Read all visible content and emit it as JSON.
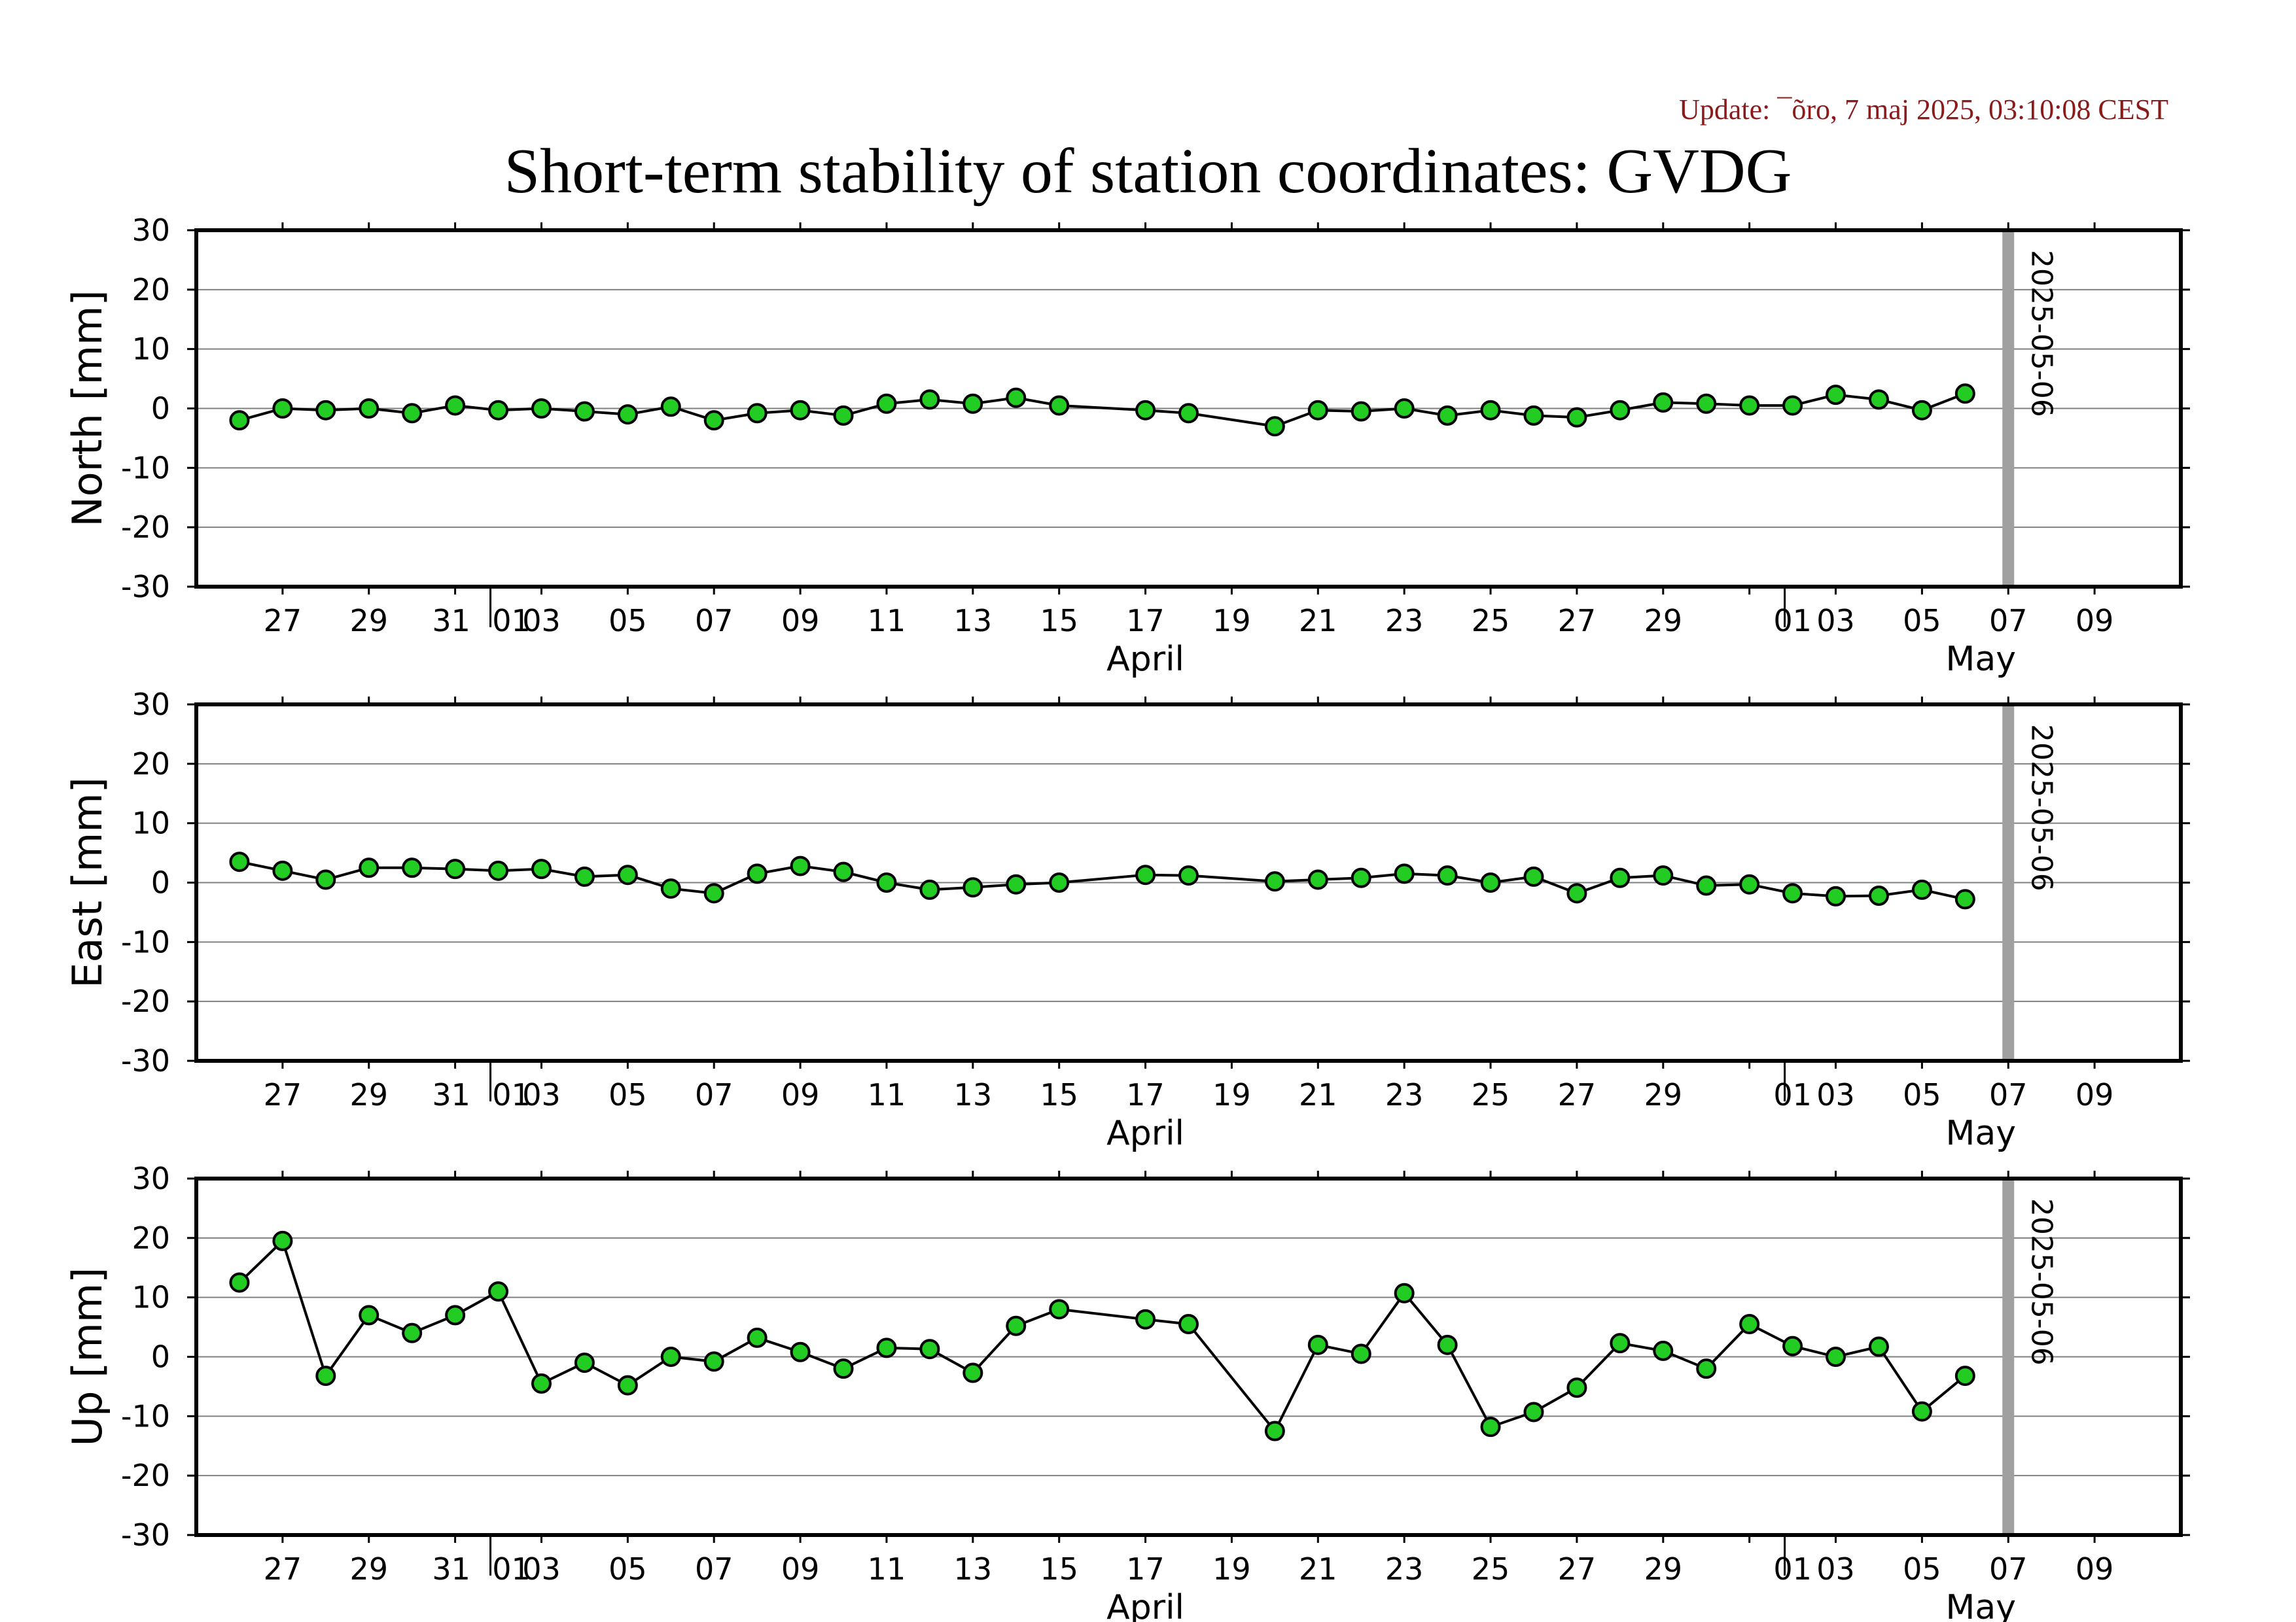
{
  "header": {
    "update": "Update: ¯õro, 7 maj 2025, 03:10:08 CEST",
    "title": "Short-term stability of station coordinates: GVDG"
  },
  "style": {
    "marker_fill": "#22cc22",
    "marker_stroke": "#000000",
    "line_color": "#000000",
    "grid_color": "#808080",
    "current_date_bar": "#a0a0a0",
    "update_color": "#8b1a1a"
  },
  "chart_data": [
    {
      "type": "line",
      "ylabel": "North [mm]",
      "ylim": [
        -30,
        30
      ],
      "yticks": [
        30,
        20,
        10,
        0,
        -10,
        -20,
        -30
      ],
      "xlim": [
        "2025-03-25",
        "2025-05-10"
      ],
      "xtick_labels": [
        "27",
        "29",
        "31",
        "01",
        "03",
        "05",
        "07",
        "09",
        "11",
        "13",
        "15",
        "17",
        "19",
        "21",
        "23",
        "25",
        "27",
        "29",
        "01",
        "03",
        "05",
        "07",
        "09"
      ],
      "month_labels": [
        "April",
        "May"
      ],
      "marker_date": "2025-05-06",
      "grid": true,
      "x": [
        "2025-03-26",
        "2025-03-27",
        "2025-03-28",
        "2025-03-29",
        "2025-03-30",
        "2025-03-31",
        "2025-04-01",
        "2025-04-02",
        "2025-04-03",
        "2025-04-04",
        "2025-04-05",
        "2025-04-06",
        "2025-04-07",
        "2025-04-08",
        "2025-04-09",
        "2025-04-10",
        "2025-04-11",
        "2025-04-12",
        "2025-04-13",
        "2025-04-14",
        "2025-04-16",
        "2025-04-17",
        "2025-04-19",
        "2025-04-20",
        "2025-04-21",
        "2025-04-22",
        "2025-04-23",
        "2025-04-24",
        "2025-04-25",
        "2025-04-26",
        "2025-04-27",
        "2025-04-28",
        "2025-04-29",
        "2025-04-30",
        "2025-05-01",
        "2025-05-02",
        "2025-05-03",
        "2025-05-04",
        "2025-05-05"
      ],
      "values": [
        -2,
        0,
        -0.3,
        0,
        -0.8,
        0.5,
        -0.3,
        0,
        -0.5,
        -1,
        0.3,
        -2,
        -0.8,
        -0.3,
        -1.2,
        0.8,
        1.5,
        0.8,
        1.8,
        0.5,
        -0.3,
        -0.8,
        -3,
        -0.3,
        -0.5,
        0,
        -1.2,
        -0.3,
        -1.2,
        -1.5,
        -0.3,
        1,
        0.8,
        0.5,
        0.5,
        2.3,
        1.5,
        -0.3,
        2.5
      ]
    },
    {
      "type": "line",
      "ylabel": "East [mm]",
      "ylim": [
        -30,
        30
      ],
      "yticks": [
        30,
        20,
        10,
        0,
        -10,
        -20,
        -30
      ],
      "xlim": [
        "2025-03-25",
        "2025-05-10"
      ],
      "xtick_labels": [
        "27",
        "29",
        "31",
        "01",
        "03",
        "05",
        "07",
        "09",
        "11",
        "13",
        "15",
        "17",
        "19",
        "21",
        "23",
        "25",
        "27",
        "29",
        "01",
        "03",
        "05",
        "07",
        "09"
      ],
      "month_labels": [
        "April",
        "May"
      ],
      "marker_date": "2025-05-06",
      "grid": true,
      "x": [
        "2025-03-26",
        "2025-03-27",
        "2025-03-28",
        "2025-03-29",
        "2025-03-30",
        "2025-03-31",
        "2025-04-01",
        "2025-04-02",
        "2025-04-03",
        "2025-04-04",
        "2025-04-05",
        "2025-04-06",
        "2025-04-07",
        "2025-04-08",
        "2025-04-09",
        "2025-04-10",
        "2025-04-11",
        "2025-04-12",
        "2025-04-13",
        "2025-04-14",
        "2025-04-16",
        "2025-04-17",
        "2025-04-19",
        "2025-04-20",
        "2025-04-21",
        "2025-04-22",
        "2025-04-23",
        "2025-04-24",
        "2025-04-25",
        "2025-04-26",
        "2025-04-27",
        "2025-04-28",
        "2025-04-29",
        "2025-04-30",
        "2025-05-01",
        "2025-05-02",
        "2025-05-03",
        "2025-05-04",
        "2025-05-05"
      ],
      "values": [
        3.5,
        2,
        0.5,
        2.5,
        2.5,
        2.3,
        2,
        2.3,
        1,
        1.3,
        -1,
        -1.8,
        1.5,
        2.8,
        1.8,
        0,
        -1.2,
        -0.8,
        -0.3,
        0,
        1.3,
        1.2,
        0.2,
        0.5,
        0.8,
        1.5,
        1.2,
        0,
        1,
        -1.8,
        0.8,
        1.2,
        -0.5,
        -0.3,
        -1.8,
        -2.3,
        -2.2,
        -1.2,
        -2.8
      ]
    },
    {
      "type": "line",
      "ylabel": "Up [mm]",
      "ylim": [
        -30,
        30
      ],
      "yticks": [
        30,
        20,
        10,
        0,
        -10,
        -20,
        -30
      ],
      "xlim": [
        "2025-03-25",
        "2025-05-10"
      ],
      "xtick_labels": [
        "27",
        "29",
        "31",
        "01",
        "03",
        "05",
        "07",
        "09",
        "11",
        "13",
        "15",
        "17",
        "19",
        "21",
        "23",
        "25",
        "27",
        "29",
        "01",
        "03",
        "05",
        "07",
        "09"
      ],
      "month_labels": [
        "April",
        "May"
      ],
      "marker_date": "2025-05-06",
      "grid": true,
      "x": [
        "2025-03-26",
        "2025-03-27",
        "2025-03-28",
        "2025-03-29",
        "2025-03-30",
        "2025-03-31",
        "2025-04-01",
        "2025-04-02",
        "2025-04-03",
        "2025-04-04",
        "2025-04-05",
        "2025-04-06",
        "2025-04-07",
        "2025-04-08",
        "2025-04-09",
        "2025-04-10",
        "2025-04-11",
        "2025-04-12",
        "2025-04-13",
        "2025-04-14",
        "2025-04-16",
        "2025-04-17",
        "2025-04-19",
        "2025-04-20",
        "2025-04-21",
        "2025-04-22",
        "2025-04-23",
        "2025-04-24",
        "2025-04-25",
        "2025-04-26",
        "2025-04-27",
        "2025-04-28",
        "2025-04-29",
        "2025-04-30",
        "2025-05-01",
        "2025-05-02",
        "2025-05-03",
        "2025-05-04",
        "2025-05-05"
      ],
      "values": [
        12.5,
        19.5,
        -3.2,
        7,
        4,
        7,
        11,
        -4.5,
        -1,
        -4.8,
        0,
        -0.8,
        3.2,
        0.8,
        -2,
        1.5,
        1.3,
        -2.7,
        5.2,
        8,
        6.3,
        5.5,
        -12.5,
        2,
        0.5,
        10.7,
        2,
        -11.8,
        -9.3,
        -5.2,
        2.3,
        1,
        -2,
        5.5,
        1.8,
        0,
        1.7,
        -9.2,
        -3.2
      ]
    }
  ]
}
